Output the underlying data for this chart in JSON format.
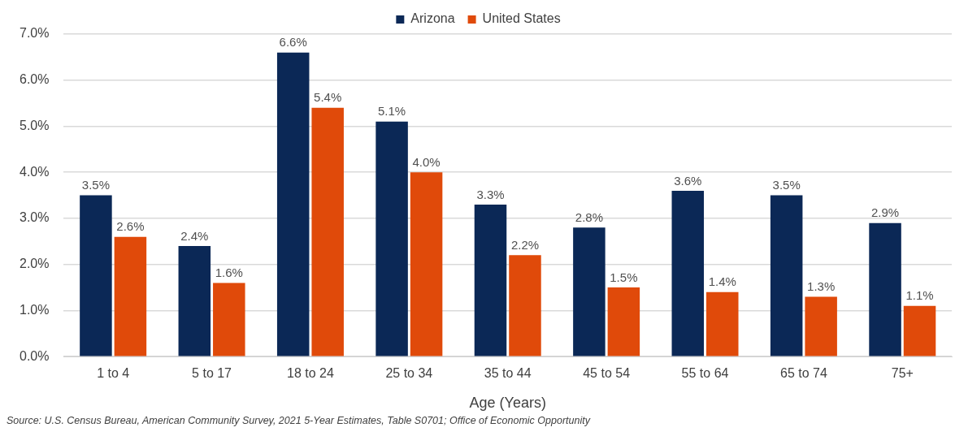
{
  "chart_data": {
    "type": "bar",
    "xlabel": "Age (Years)",
    "categories": [
      "1 to 4",
      "5 to 17",
      "18 to 24",
      "25 to 34",
      "35 to 44",
      "45 to 54",
      "55 to 64",
      "65 to 74",
      "75+"
    ],
    "series": [
      {
        "name": "Arizona",
        "color": "#0b2856",
        "values": [
          3.5,
          2.4,
          6.6,
          5.1,
          3.3,
          2.8,
          3.6,
          3.5,
          2.9
        ],
        "value_labels": [
          "3.5%",
          "2.4%",
          "6.6%",
          "5.1%",
          "3.3%",
          "2.8%",
          "3.6%",
          "3.5%",
          "2.9%"
        ]
      },
      {
        "name": "United States",
        "color": "#e04a0a",
        "values": [
          2.6,
          1.6,
          5.4,
          4.0,
          2.2,
          1.5,
          1.4,
          1.3,
          1.1
        ],
        "value_labels": [
          "2.6%",
          "1.6%",
          "5.4%",
          "4.0%",
          "2.2%",
          "1.5%",
          "1.4%",
          "1.3%",
          "1.1%"
        ]
      }
    ],
    "ylim": [
      0,
      7
    ],
    "yticks": [
      {
        "value": 0,
        "label": "0.0%"
      },
      {
        "value": 1,
        "label": "1.0%"
      },
      {
        "value": 2,
        "label": "2.0%"
      },
      {
        "value": 3,
        "label": "3.0%"
      },
      {
        "value": 4,
        "label": "4.0%"
      },
      {
        "value": 5,
        "label": "5.0%"
      },
      {
        "value": 6,
        "label": "6.0%"
      },
      {
        "value": 7,
        "label": "7.0%"
      }
    ],
    "grid": "y",
    "legend": "top",
    "annotations": [
      "Source: U.S. Census Bureau, American Community Survey, 2021 5-Year Estimates, Table S0701;  Office of Economic Opportunity"
    ]
  }
}
